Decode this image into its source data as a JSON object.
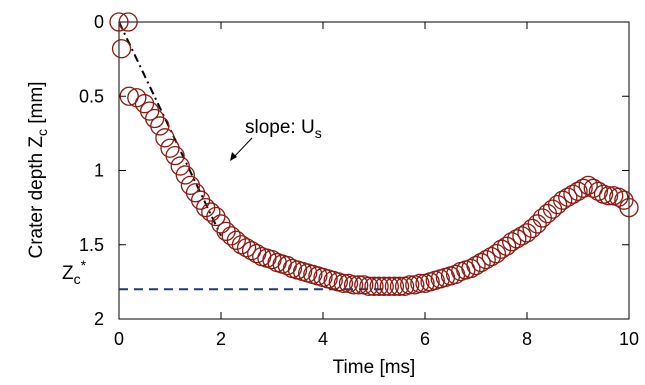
{
  "chart_data": {
    "type": "scatter",
    "xlabel": "Time [ms]",
    "ylabel": {
      "main": "Crater depth Z",
      "sub": "c",
      "unit": " [mm]"
    },
    "xlim": [
      0,
      10
    ],
    "ylim": [
      0,
      2
    ],
    "y_inverted": true,
    "xticks": [
      "0",
      "2",
      "4",
      "6",
      "8",
      "10"
    ],
    "yticks": [
      "0",
      "0.5",
      "1",
      "1.5",
      "2"
    ],
    "grid": false,
    "marker": {
      "shape": "open-circle",
      "color": "#8b1a12"
    },
    "annotations": {
      "slope": {
        "text": "slope: U",
        "sub": "s",
        "line_from": [
          0,
          0
        ],
        "line_to": [
          2.0,
          1.44
        ],
        "color": "#000000"
      },
      "zc_star": {
        "text": "Z",
        "sub": "c",
        "sup": "*",
        "y": 1.8,
        "line_x": [
          0,
          5.3
        ],
        "color": "#1f3b73"
      }
    },
    "series": [
      {
        "x": [
          0.0,
          0.18,
          0.05,
          0.2,
          0.35,
          0.5,
          0.6,
          0.7,
          0.8,
          0.9,
          1.0,
          1.1,
          1.2,
          1.3,
          1.4,
          1.5,
          1.6,
          1.7,
          1.8,
          1.9,
          2.0,
          2.1,
          2.2,
          2.3,
          2.4,
          2.5,
          2.6,
          2.7,
          2.8,
          2.9,
          3.0,
          3.1,
          3.2,
          3.3,
          3.4,
          3.5,
          3.6,
          3.7,
          3.8,
          3.9,
          4.0,
          4.1,
          4.2,
          4.3,
          4.4,
          4.5,
          4.6,
          4.7,
          4.8,
          4.9,
          5.0,
          5.1,
          5.2,
          5.3,
          5.4,
          5.5,
          5.6,
          5.7,
          5.8,
          5.9,
          6.0,
          6.1,
          6.2,
          6.3,
          6.4,
          6.5,
          6.6,
          6.7,
          6.8,
          6.9,
          7.0,
          7.1,
          7.2,
          7.3,
          7.4,
          7.5,
          7.6,
          7.7,
          7.8,
          7.9,
          8.0,
          8.1,
          8.2,
          8.3,
          8.4,
          8.5,
          8.6,
          8.7,
          8.8,
          8.9,
          9.0,
          9.1,
          9.2,
          9.3,
          9.4,
          9.5,
          9.6,
          9.7,
          9.8,
          9.9,
          10.0
        ],
        "y": [
          0.0,
          0.0,
          0.18,
          0.5,
          0.51,
          0.55,
          0.6,
          0.65,
          0.7,
          0.78,
          0.85,
          0.9,
          0.97,
          1.03,
          1.1,
          1.15,
          1.2,
          1.25,
          1.28,
          1.31,
          1.36,
          1.41,
          1.44,
          1.47,
          1.5,
          1.52,
          1.54,
          1.56,
          1.58,
          1.59,
          1.6,
          1.62,
          1.63,
          1.64,
          1.66,
          1.67,
          1.68,
          1.69,
          1.7,
          1.71,
          1.72,
          1.73,
          1.74,
          1.75,
          1.76,
          1.76,
          1.77,
          1.77,
          1.77,
          1.78,
          1.78,
          1.78,
          1.78,
          1.78,
          1.78,
          1.78,
          1.78,
          1.77,
          1.77,
          1.76,
          1.76,
          1.75,
          1.74,
          1.73,
          1.72,
          1.71,
          1.7,
          1.68,
          1.67,
          1.66,
          1.64,
          1.62,
          1.6,
          1.58,
          1.56,
          1.53,
          1.51,
          1.48,
          1.46,
          1.44,
          1.42,
          1.39,
          1.36,
          1.32,
          1.29,
          1.26,
          1.23,
          1.2,
          1.18,
          1.16,
          1.14,
          1.12,
          1.1,
          1.12,
          1.14,
          1.16,
          1.17,
          1.17,
          1.18,
          1.2,
          1.25
        ]
      }
    ]
  }
}
